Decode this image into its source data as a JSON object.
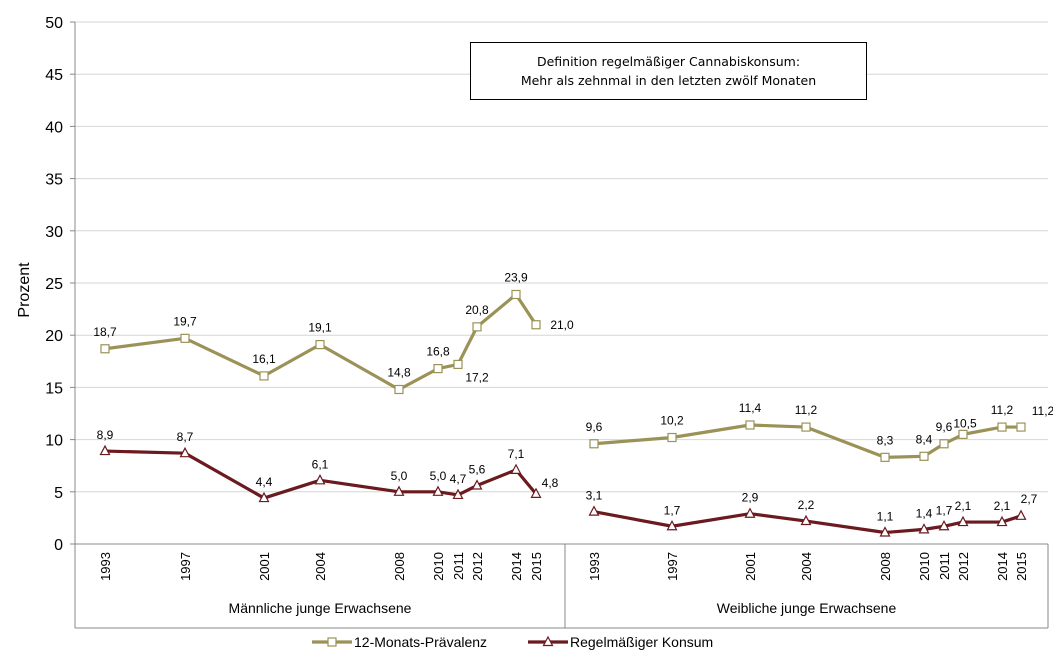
{
  "chart_data": {
    "type": "line",
    "ylabel": "Prozent",
    "ylim": [
      0,
      50
    ],
    "yticks": [
      0,
      5,
      10,
      15,
      20,
      25,
      30,
      35,
      40,
      45,
      50
    ],
    "grid": "horizontal",
    "legend_position": "bottom",
    "annotation_lines": [
      "Definition regelmäßiger Cannabiskonsum:",
      "Mehr als zehnmal in den letzten zwölf Monaten"
    ],
    "groups": [
      {
        "label": "Männliche junge Erwachsene",
        "x": [
          "1993",
          "1997",
          "2001",
          "2004",
          "2008",
          "2010",
          "2011",
          "2012",
          "2014",
          "2015"
        ],
        "series": [
          {
            "name": "12-Monats-Prävalenz",
            "values": [
              18.7,
              19.7,
              16.1,
              19.1,
              14.8,
              16.8,
              17.2,
              20.8,
              23.9,
              21.0
            ],
            "labels": [
              "18,7",
              "19,7",
              "16,1",
              "19,1",
              "14,8",
              "16,8",
              "17,2",
              "20,8",
              "23,9",
              "21,0"
            ]
          },
          {
            "name": "Regelmäßiger Konsum",
            "values": [
              8.9,
              8.7,
              4.4,
              6.1,
              5.0,
              5.0,
              4.7,
              5.6,
              7.1,
              4.8
            ],
            "labels": [
              "8,9",
              "8,7",
              "4,4",
              "6,1",
              "5,0",
              "5,0",
              "4,7",
              "5,6",
              "7,1",
              "4,8"
            ]
          }
        ]
      },
      {
        "label": "Weibliche junge Erwachsene",
        "x": [
          "1993",
          "1997",
          "2001",
          "2004",
          "2008",
          "2010",
          "2011",
          "2012",
          "2014",
          "2015"
        ],
        "series": [
          {
            "name": "12-Monats-Prävalenz",
            "values": [
              9.6,
              10.2,
              11.4,
              11.2,
              8.3,
              8.4,
              9.6,
              10.5,
              11.2,
              11.2
            ],
            "labels": [
              "9,6",
              "10,2",
              "11,4",
              "11,2",
              "8,3",
              "8,4",
              "9,6",
              "10,5",
              "11,2",
              "11,2"
            ]
          },
          {
            "name": "Regelmäßiger Konsum",
            "values": [
              3.1,
              1.7,
              2.9,
              2.2,
              1.1,
              1.4,
              1.7,
              2.1,
              2.1,
              2.7
            ],
            "labels": [
              "3,1",
              "1,7",
              "2,9",
              "2,2",
              "1,1",
              "1,4",
              "1,7",
              "2,1",
              "2,1",
              "2,7"
            ]
          }
        ]
      }
    ],
    "legend": [
      {
        "name": "12-Monats-Prävalenz",
        "color": "#9b9257",
        "marker": "square"
      },
      {
        "name": "Regelmäßiger Konsum",
        "color": "#6b1a1f",
        "marker": "triangle"
      }
    ]
  }
}
